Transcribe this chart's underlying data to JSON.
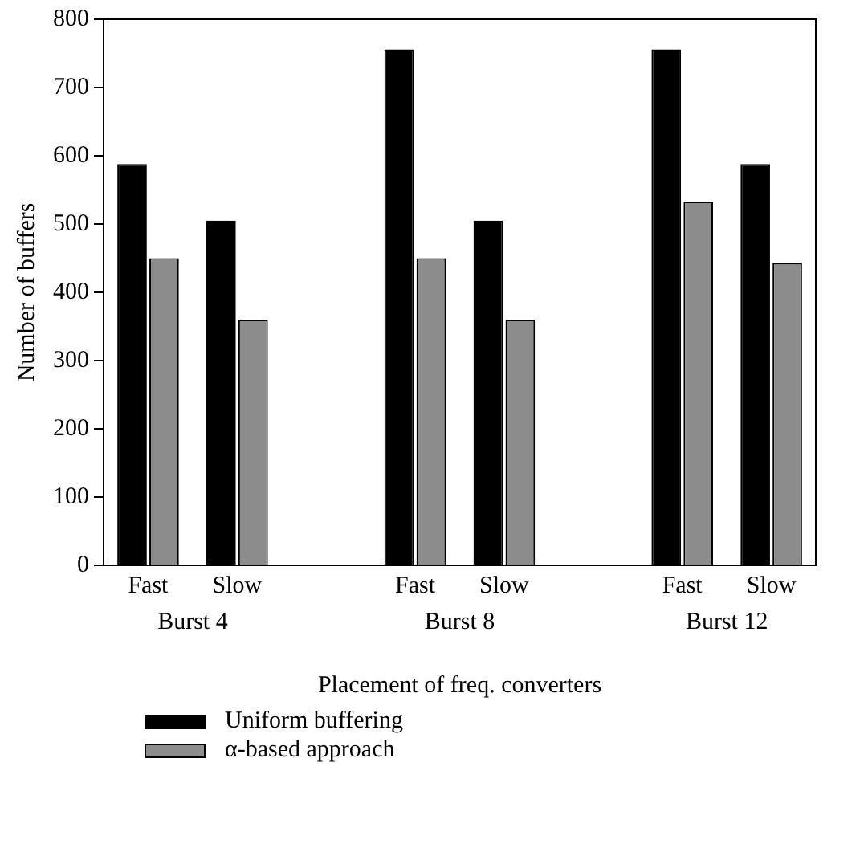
{
  "chart_data": {
    "type": "bar",
    "xlabel": "Placement of freq. converters",
    "ylabel": "Number of buffers",
    "categories": [
      "Fast",
      "Slow",
      null,
      "Fast",
      "Slow",
      null,
      "Fast",
      "Slow"
    ],
    "series": [
      {
        "name": "Uniform buffering",
        "color": "#000000",
        "values": [
          588,
          505,
          null,
          756,
          505,
          null,
          756,
          588
        ]
      },
      {
        "name": "α-based approach",
        "color": "#8c8c8c",
        "values": [
          450,
          360,
          null,
          450,
          360,
          null,
          533,
          443
        ]
      }
    ],
    "annotations": [
      "Burst 4",
      "Burst 8",
      "Burst 12"
    ],
    "ylim": [
      0,
      800
    ],
    "yticks": [
      0,
      100,
      200,
      300,
      400,
      500,
      600,
      700,
      800
    ],
    "grid": false,
    "legend": "bottom"
  }
}
